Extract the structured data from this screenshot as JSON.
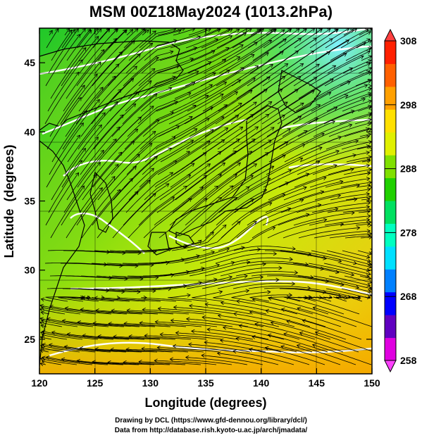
{
  "title": "MSM 00Z18May2024 (1013.2hPa)",
  "x_axis": {
    "label": "Longitude (degrees)",
    "ticks": [
      "120",
      "125",
      "130",
      "135",
      "140",
      "145",
      "150"
    ],
    "range": [
      120,
      150
    ]
  },
  "y_axis": {
    "label": "Latitude  (degrees)",
    "ticks": [
      "25",
      "30",
      "35",
      "40",
      "45"
    ],
    "range": [
      22.5,
      47.5
    ]
  },
  "colorbar": {
    "ticks": [
      "258",
      "268",
      "278",
      "288",
      "298",
      "308"
    ],
    "range": [
      258,
      308
    ],
    "colors": [
      "#e000e0",
      "#6000c0",
      "#0000ff",
      "#0080ff",
      "#00e0ff",
      "#00ffc0",
      "#00e060",
      "#20d000",
      "#80e000",
      "#e0f000",
      "#ffe000",
      "#ffa000",
      "#ff6000",
      "#ff2000"
    ]
  },
  "footer": {
    "line1": "Drawing by DCL (https://www.gfd-dennou.org/library/dcl/)",
    "line2": "Data from http://database.rish.kyoto-u.ac.jp/arch/jmadata/"
  }
}
